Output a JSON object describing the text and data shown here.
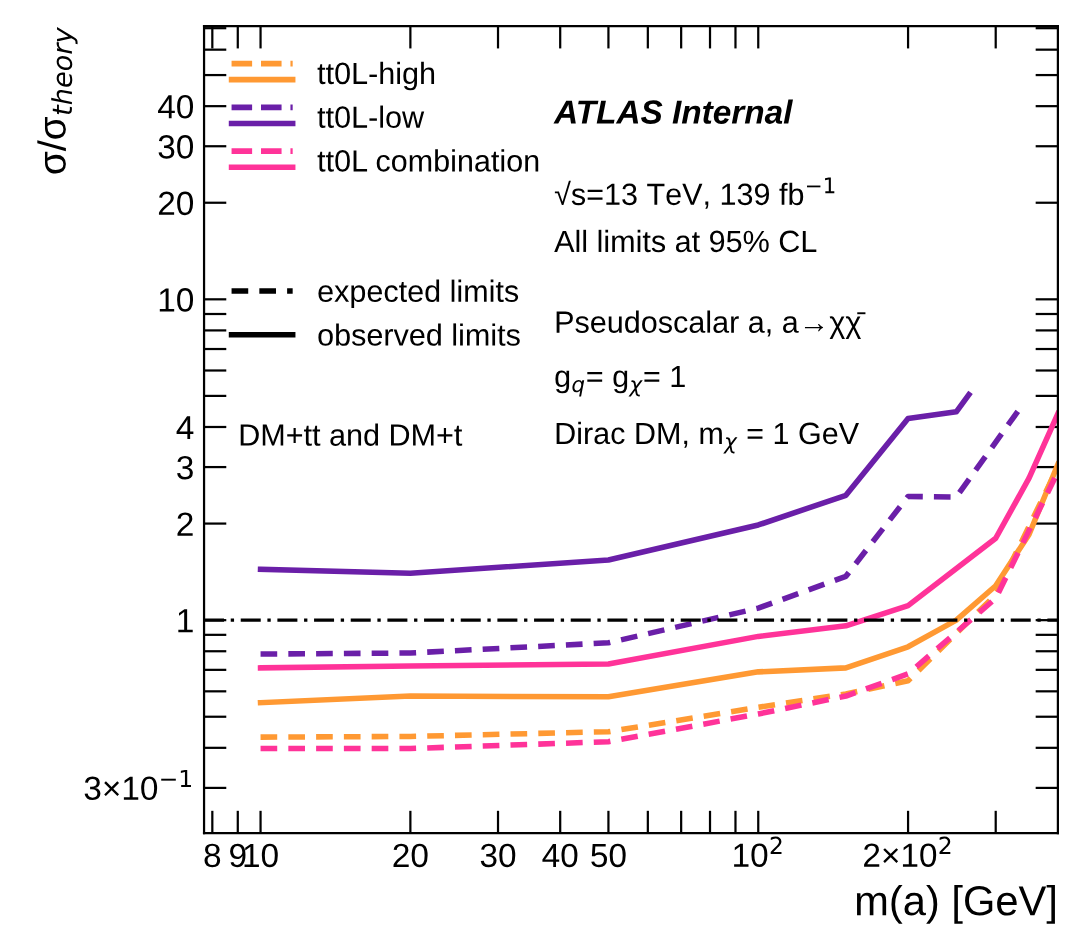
{
  "chart_data": {
    "type": "line",
    "xlabel": "m(a) [GeV]",
    "ylabel": "σ/σ$_{theory}$",
    "log": "xy",
    "grid": false,
    "legend": "top left",
    "marker": "none",
    "xlim": [
      7.7,
      400
    ],
    "ylim": [
      0.217,
      71
    ],
    "xticks": [
      8,
      9,
      10,
      20,
      30,
      40,
      50,
      {
        "value": 60,
        "label": null
      },
      {
        "value": 70,
        "label": null
      },
      {
        "value": 80,
        "label": null
      },
      {
        "value": 90,
        "label": null
      },
      {
        "value": 100,
        "label": "10$^{2}$"
      },
      {
        "value": 200,
        "label": "2×10$^{2}$"
      },
      {
        "value": 300,
        "label": null
      }
    ],
    "yticks": [
      {
        "value": 0.3,
        "label": "3×10$^{−1}$"
      },
      {
        "value": 0.4,
        "label": null
      },
      {
        "value": 0.5,
        "label": null
      },
      {
        "value": 0.6,
        "label": null
      },
      {
        "value": 0.7,
        "label": null
      },
      {
        "value": 0.8,
        "label": null
      },
      {
        "value": 0.9,
        "label": null
      },
      1,
      2,
      3,
      4,
      {
        "value": 5,
        "label": null
      },
      {
        "value": 6,
        "label": null
      },
      {
        "value": 7,
        "label": null
      },
      {
        "value": 8,
        "label": null
      },
      {
        "value": 9,
        "label": null
      },
      10,
      20,
      30,
      40,
      {
        "value": 50,
        "label": null
      },
      {
        "value": 60,
        "label": null
      },
      {
        "value": 70,
        "label": null
      }
    ],
    "series": [
      {
        "color": "#ff9933",
        "line_style": "dashed",
        "x": [
          10,
          20,
          50,
          100,
          150,
          200,
          300,
          400
        ],
        "values": [
          0.432,
          0.434,
          0.449,
          0.535,
          0.589,
          0.647,
          1.2,
          3.0
        ]
      },
      {
        "name": "tt0L-high",
        "color": "#ff9933",
        "line_style": "solid",
        "x": [
          10,
          20,
          50,
          100,
          150,
          200,
          250,
          300,
          350,
          400
        ],
        "values": [
          0.553,
          0.58,
          0.577,
          0.69,
          0.71,
          0.826,
          1.0,
          1.28,
          1.85,
          3.06
        ]
      },
      {
        "color": "#6a1fa8",
        "line_style": "dashed",
        "x": [
          10,
          20,
          50,
          100,
          150,
          200,
          250,
          340
        ],
        "values": [
          0.784,
          0.79,
          0.85,
          1.09,
          1.37,
          2.43,
          2.42,
          4.7
        ]
      },
      {
        "name": "tt0L-low",
        "color": "#6a1fa8",
        "line_style": "solid",
        "x": [
          10,
          20,
          50,
          100,
          150,
          200,
          250,
          265
        ],
        "values": [
          1.44,
          1.4,
          1.54,
          1.98,
          2.45,
          4.25,
          4.46,
          5.05
        ]
      },
      {
        "color": "#ff3399",
        "line_style": "dashed",
        "x": [
          10,
          20,
          50,
          100,
          150,
          200,
          300,
          400
        ],
        "values": [
          0.398,
          0.398,
          0.418,
          0.51,
          0.58,
          0.68,
          1.17,
          2.9
        ]
      },
      {
        "name": "tt0L combination",
        "color": "#ff3399",
        "line_style": "solid",
        "x": [
          10,
          20,
          50,
          100,
          150,
          200,
          300,
          350,
          400
        ],
        "values": [
          0.71,
          0.72,
          0.73,
          0.89,
          0.96,
          1.11,
          1.8,
          2.77,
          4.4
        ]
      }
    ],
    "ref_lines": [
      {
        "axis": "y",
        "value": 1,
        "color": "#000000",
        "line_style": "dashdot"
      }
    ],
    "annotations": [
      "expected limits",
      "observed limits",
      "DM+tt and DM+t",
      "ATLAS Internal",
      "√s=13 TeV, 139 fb$^{−1}$",
      "All limits at 95% CL",
      "Pseudoscalar a, a→χχ̄",
      "g$_{q}$= g$_{χ}$= 1",
      "Dirac DM, m$_{χ}$ = 1 GeV"
    ]
  }
}
